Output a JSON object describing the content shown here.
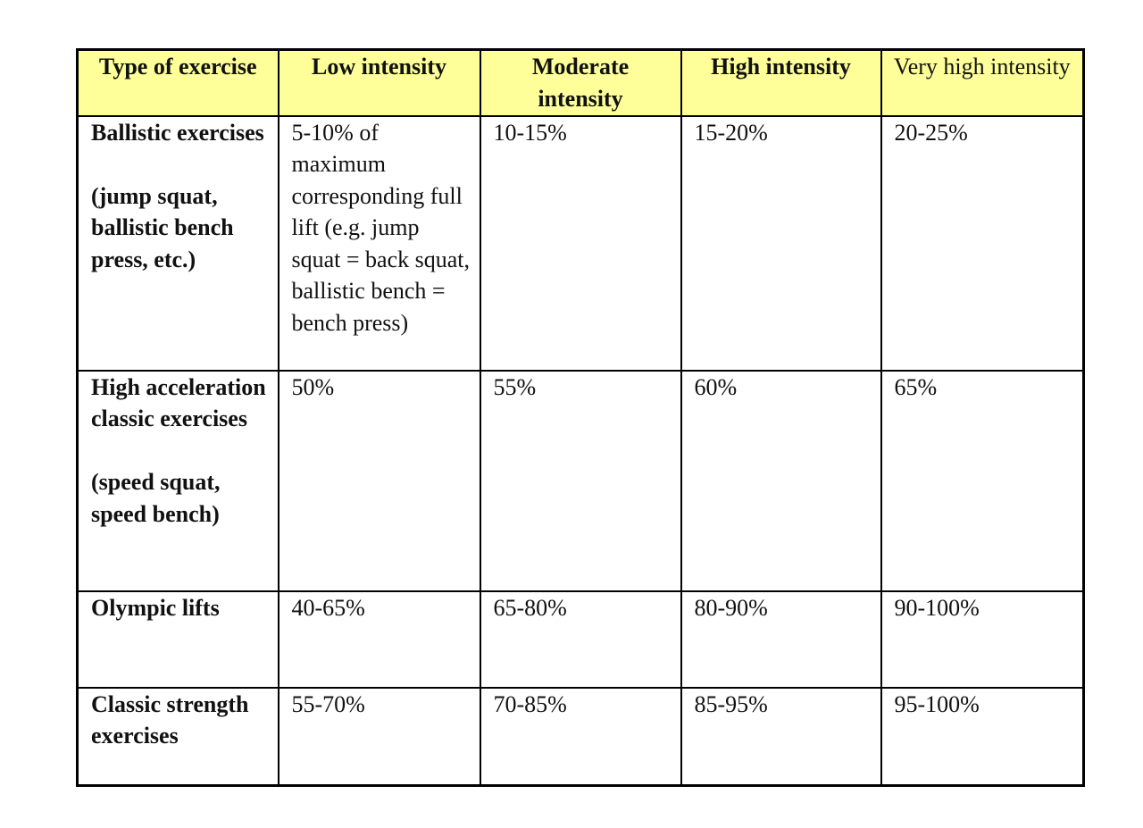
{
  "table": {
    "header": [
      "Type of exercise",
      "Low intensity",
      "Moderate intensity",
      "High intensity",
      "Very high intensity"
    ],
    "rows": [
      {
        "type": [
          "Ballistic exercises",
          "(jump squat, ballistic bench press, etc.)"
        ],
        "values": [
          "5-10% of maximum corresponding full lift (e.g. jump squat = back squat, ballistic bench = bench press)",
          "10-15%",
          "15-20%",
          "20-25%"
        ]
      },
      {
        "type": [
          "High acceleration classic exercises",
          "(speed squat, speed bench)"
        ],
        "values": [
          "50%",
          "55%",
          "60%",
          "65%"
        ]
      },
      {
        "type": [
          "Olympic lifts"
        ],
        "values": [
          "40-65%",
          "65-80%",
          "80-90%",
          "90-100%"
        ]
      },
      {
        "type": [
          "Classic strength exercises"
        ],
        "values": [
          "55-70%",
          "70-85%",
          "85-95%",
          "95-100%"
        ]
      }
    ]
  }
}
